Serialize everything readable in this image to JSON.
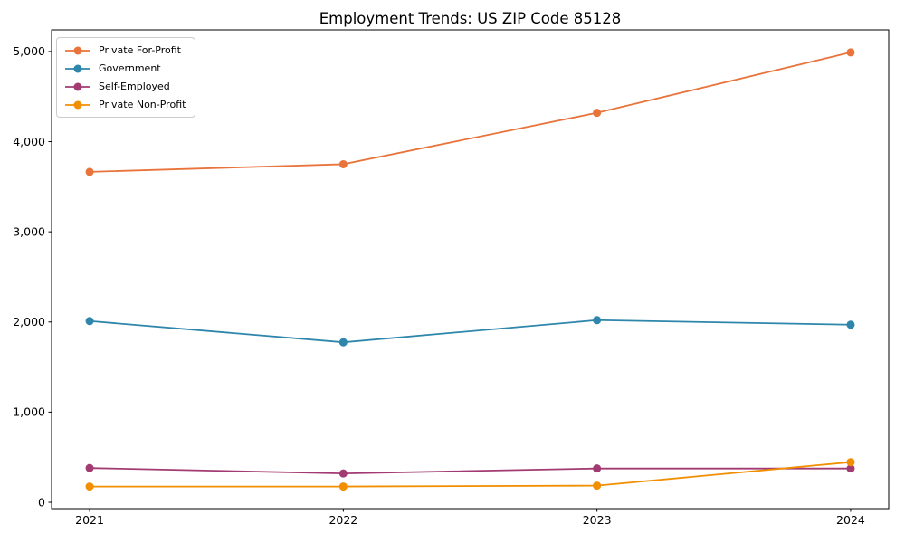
{
  "chart_data": {
    "type": "line",
    "title": "Employment Trends: US ZIP Code 85128",
    "categories": [
      "2021",
      "2022",
      "2023",
      "2024"
    ],
    "series": [
      {
        "name": "Private For-Profit",
        "color": "#E8743B",
        "values": [
          3665,
          3750,
          4320,
          4990
        ]
      },
      {
        "name": "Government",
        "color": "#2E86AB",
        "values": [
          2010,
          1775,
          2020,
          1970
        ]
      },
      {
        "name": "Self-Employed",
        "color": "#A23B72",
        "values": [
          380,
          320,
          375,
          375
        ]
      },
      {
        "name": "Private Non-Profit",
        "color": "#F18F01",
        "values": [
          175,
          175,
          185,
          445
        ]
      }
    ],
    "xlabel": "",
    "ylabel": "",
    "ylim": [
      -70,
      5240
    ],
    "yticks": [
      0,
      1000,
      2000,
      3000,
      4000,
      5000
    ],
    "ytick_labels": [
      "0",
      "1,000",
      "2,000",
      "3,000",
      "4,000",
      "5,000"
    ],
    "xtick_labels": [
      "2021",
      "2022",
      "2023",
      "2024"
    ],
    "legend_position": "upper left",
    "grid": false,
    "marker": "circle"
  }
}
